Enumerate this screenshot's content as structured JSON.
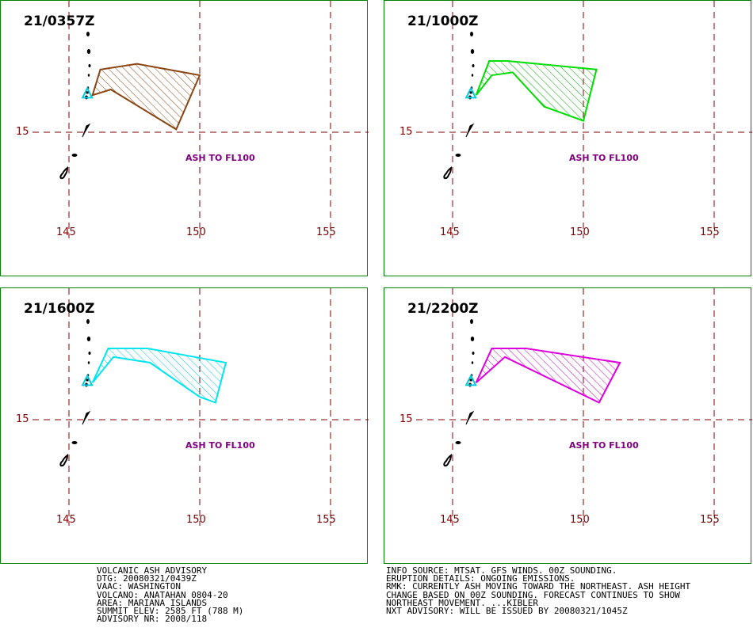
{
  "panels": [
    {
      "time": "21/0357Z",
      "ash_label": "ASH TO FL100",
      "color": "#8B4513",
      "hatch": "#8B4513",
      "polygon": [
        [
          145.9,
          16.3
        ],
        [
          146.2,
          17.2
        ],
        [
          147.6,
          17.4
        ],
        [
          150.0,
          17.0
        ],
        [
          149.1,
          15.1
        ],
        [
          146.6,
          16.5
        ]
      ]
    },
    {
      "time": "21/1000Z",
      "ash_label": "ASH TO FL100",
      "color": "#00DD00",
      "hatch": "#00AA00",
      "polygon": [
        [
          145.9,
          16.3
        ],
        [
          146.4,
          17.5
        ],
        [
          147.1,
          17.5
        ],
        [
          150.5,
          17.2
        ],
        [
          150.0,
          15.4
        ],
        [
          148.5,
          15.9
        ],
        [
          147.3,
          17.1
        ],
        [
          146.5,
          17.0
        ]
      ]
    },
    {
      "time": "21/1600Z",
      "ash_label": "ASH TO FL100",
      "color": "#00E5EE",
      "hatch": "#00CCDD",
      "polygon": [
        [
          145.9,
          16.3
        ],
        [
          146.5,
          17.5
        ],
        [
          148.0,
          17.5
        ],
        [
          151.0,
          17.0
        ],
        [
          150.6,
          15.6
        ],
        [
          150.0,
          15.8
        ],
        [
          148.1,
          17.0
        ],
        [
          146.7,
          17.2
        ]
      ]
    },
    {
      "time": "21/2200Z",
      "ash_label": "ASH TO FL100",
      "color": "#DD00DD",
      "hatch": "#CC00CC",
      "polygon": [
        [
          145.9,
          16.3
        ],
        [
          146.5,
          17.5
        ],
        [
          147.8,
          17.5
        ],
        [
          151.4,
          17.0
        ],
        [
          150.6,
          15.6
        ],
        [
          147.0,
          17.2
        ]
      ]
    }
  ],
  "map": {
    "lon_ticks": [
      "145",
      "150",
      "155"
    ],
    "lat_ticks": [
      "15"
    ],
    "lon_values": [
      145,
      150,
      155
    ],
    "lat_values": [
      15
    ],
    "volcano": {
      "lon": 145.7,
      "lat": 16.35
    }
  },
  "advisory_left": [
    "VOLCANIC ASH ADVISORY",
    "DTG: 20080321/0439Z",
    "VAAC: WASHINGTON",
    "VOLCANO: ANATAHAN 0804-20",
    "AREA: MARIANA ISLANDS",
    "SUMMIT ELEV: 2585 FT (788 M)",
    "ADVISORY NR: 2008/118"
  ],
  "advisory_right": [
    "INFO SOURCE: MTSAT. GFS WINDS. 00Z SOUNDING.",
    "ERUPTION DETAILS: ONGOING EMISSIONS.",
    "RMK: CURRENTLY ASH MOVING TOWARD THE NORTHEAST. ASH HEIGHT",
    "CHANGE BASED ON 00Z SOUNDING. FORECAST CONTINUES TO SHOW",
    "NORTHEAST MOVEMENT. ...KIBLER",
    "NXT ADVISORY: WILL BE ISSUED BY 20080321/1045Z"
  ]
}
